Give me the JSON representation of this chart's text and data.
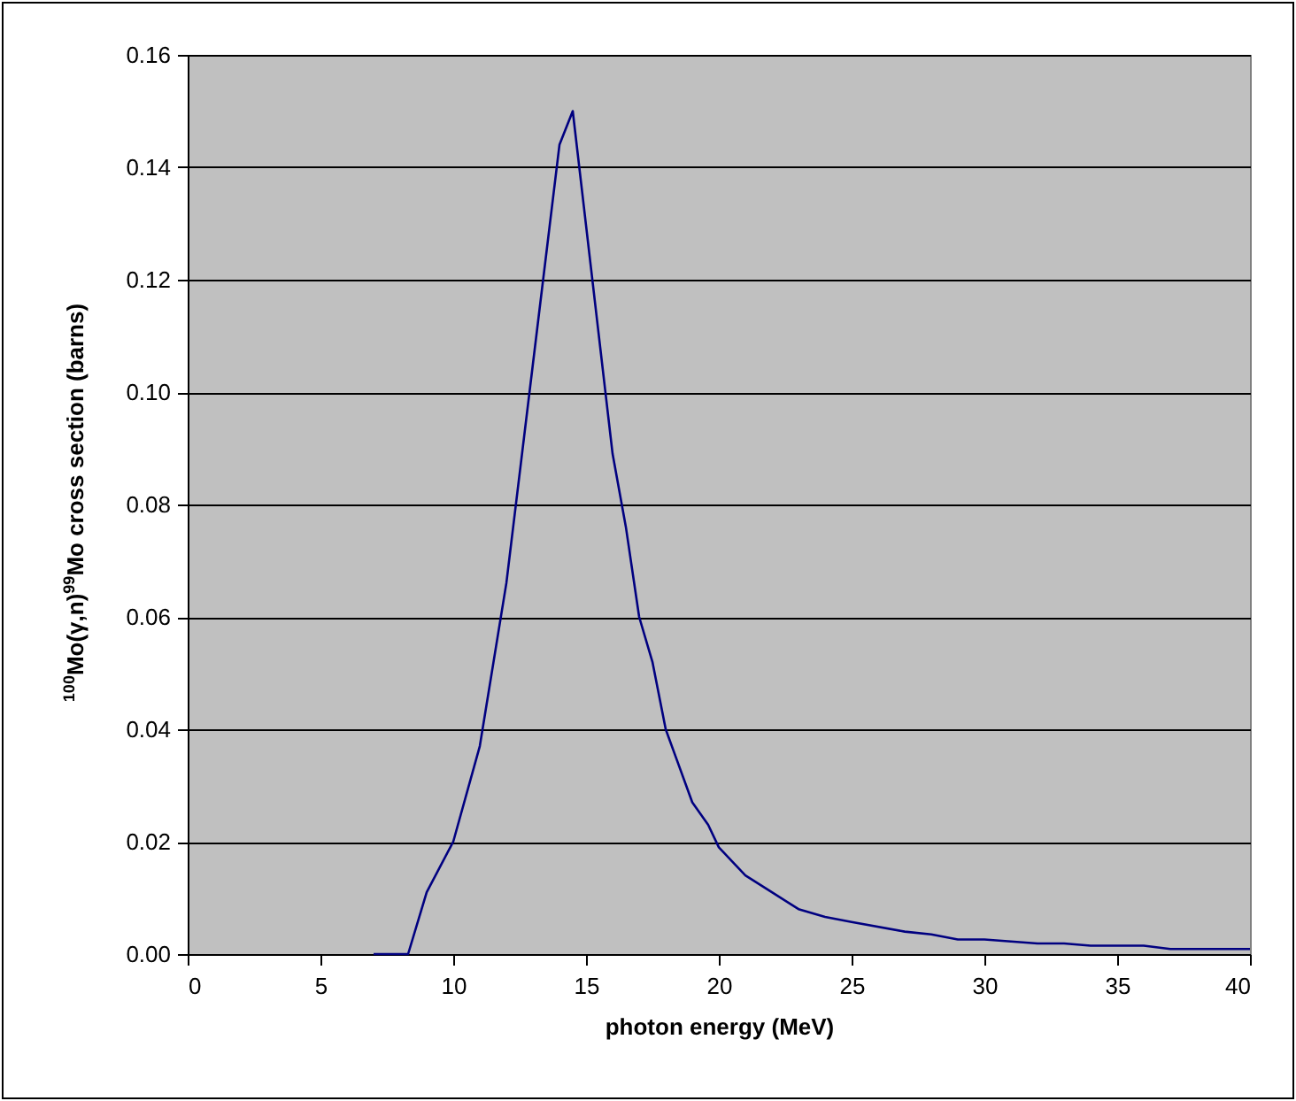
{
  "chart_data": {
    "type": "line",
    "xlabel": "photon energy (MeV)",
    "ylabel": "$^{100}$Mo(γ,n)$^{99}$Mo cross section (barns)",
    "x": [
      7,
      8.3,
      9,
      10,
      11,
      12,
      13,
      14,
      14.5,
      16,
      16.5,
      17,
      17.5,
      18,
      19,
      19.6,
      20,
      21,
      22,
      23,
      24,
      25,
      27,
      28,
      29,
      30,
      32,
      33,
      34,
      36,
      37,
      40
    ],
    "series": [
      {
        "color": "#000080",
        "values": [
          0,
          0,
          0.011,
          0.02,
          0.037,
          0.066,
          0.105,
          0.144,
          0.15,
          0.089,
          0.076,
          0.06,
          0.052,
          0.04,
          0.027,
          0.023,
          0.019,
          0.014,
          0.011,
          0.008,
          0.0066,
          0.0057,
          0.004,
          0.0035,
          0.0026,
          0.0026,
          0.0019,
          0.0019,
          0.0015,
          0.0015,
          0.0009,
          0.0009
        ]
      }
    ],
    "xlim": [
      0,
      40
    ],
    "xticks": [
      0,
      5,
      10,
      15,
      20,
      25,
      30,
      35,
      40
    ],
    "ylim": [
      0,
      0.16
    ],
    "yticks": [
      {
        "value": 0,
        "label": "0.00"
      },
      {
        "value": 0.02,
        "label": "0.02"
      },
      {
        "value": 0.04,
        "label": "0.04"
      },
      {
        "value": 0.06,
        "label": "0.06"
      },
      {
        "value": 0.08,
        "label": "0.08"
      },
      {
        "value": 0.1,
        "label": "0.10"
      },
      {
        "value": 0.12,
        "label": "0.12"
      },
      {
        "value": 0.14,
        "label": "0.14"
      },
      {
        "value": 0.16,
        "label": "0.16"
      }
    ],
    "grid": "y",
    "marker": "none",
    "line_style": "solid"
  }
}
